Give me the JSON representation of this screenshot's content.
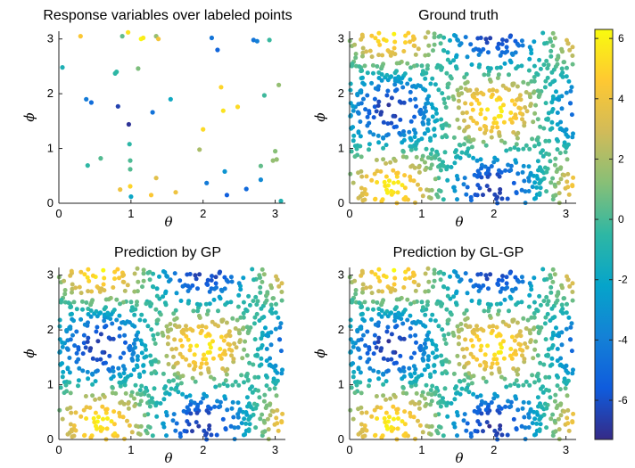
{
  "chart_data": [
    {
      "type": "scatter",
      "title": "Response variables over labeled points",
      "xlabel": "θ",
      "ylabel": "ϕ",
      "xlim": [
        0,
        3.14159
      ],
      "ylim": [
        0,
        3.14159
      ],
      "xticks": [
        "0",
        "1",
        "2",
        "3"
      ],
      "yticks": [
        "0",
        "1",
        "2",
        "3"
      ],
      "points": [
        [
          0.05,
          2.48,
          -1.2
        ],
        [
          0.3,
          3.05,
          4.5
        ],
        [
          0.38,
          1.9,
          -4.2
        ],
        [
          0.45,
          1.84,
          -4.8
        ],
        [
          0.4,
          0.69,
          -0.5
        ],
        [
          0.58,
          0.82,
          0.2
        ],
        [
          0.78,
          2.37,
          -0.6
        ],
        [
          0.8,
          2.4,
          -0.5
        ],
        [
          0.82,
          1.77,
          -6.5
        ],
        [
          0.85,
          0.25,
          4.0
        ],
        [
          0.88,
          3.05,
          0.5
        ],
        [
          0.96,
          3.12,
          5.5
        ],
        [
          0.97,
          1.44,
          -7.0
        ],
        [
          0.98,
          1.08,
          -0.6
        ],
        [
          0.99,
          0.78,
          0.1
        ],
        [
          0.99,
          0.62,
          0.2
        ],
        [
          0.99,
          0.31,
          5.0
        ],
        [
          1.0,
          0.12,
          -2.0
        ],
        [
          1.1,
          2.46,
          1.0
        ],
        [
          1.14,
          3.0,
          6.2
        ],
        [
          1.17,
          3.02,
          5.8
        ],
        [
          1.28,
          0.15,
          4.5
        ],
        [
          1.3,
          1.66,
          -4.6
        ],
        [
          1.35,
          0.46,
          3.5
        ],
        [
          1.35,
          3.05,
          1.6
        ],
        [
          1.38,
          3.0,
          4.2
        ],
        [
          1.55,
          1.9,
          -1.8
        ],
        [
          1.62,
          0.2,
          4.0
        ],
        [
          1.95,
          0.98,
          2.0
        ],
        [
          2.0,
          1.35,
          5.2
        ],
        [
          2.05,
          0.37,
          -4.2
        ],
        [
          2.12,
          3.02,
          -4.5
        ],
        [
          2.2,
          2.8,
          -5.2
        ],
        [
          2.25,
          2.12,
          5.0
        ],
        [
          2.28,
          1.69,
          5.5
        ],
        [
          2.33,
          0.15,
          -5.5
        ],
        [
          2.3,
          0.58,
          -3.0
        ],
        [
          2.48,
          1.76,
          5.2
        ],
        [
          2.6,
          0.26,
          -5.0
        ],
        [
          2.7,
          2.98,
          -4.5
        ],
        [
          2.75,
          2.96,
          -4.0
        ],
        [
          2.8,
          0.68,
          0.5
        ],
        [
          2.8,
          0.43,
          -3.5
        ],
        [
          2.85,
          1.97,
          -0.2
        ],
        [
          2.92,
          2.98,
          -0.3
        ],
        [
          2.97,
          0.78,
          1.5
        ],
        [
          3.0,
          0.95,
          1.2
        ],
        [
          3.02,
          0.8,
          1.5
        ],
        [
          3.05,
          2.16,
          1.5
        ],
        [
          3.08,
          0.04,
          -1.0
        ]
      ]
    },
    {
      "type": "scatter",
      "title": "Ground truth",
      "xlabel": "θ",
      "ylabel": "ϕ",
      "xlim": [
        0,
        3.14159
      ],
      "ylim": [
        0,
        3.14159
      ],
      "xticks": [
        "0",
        "1",
        "2",
        "3"
      ],
      "yticks": [
        "0",
        "1",
        "2",
        "3"
      ]
    },
    {
      "type": "scatter",
      "title": "Prediction by GP",
      "xlabel": "θ",
      "ylabel": "ϕ",
      "xlim": [
        0,
        3.14159
      ],
      "ylim": [
        0,
        3.14159
      ],
      "xticks": [
        "0",
        "1",
        "2",
        "3"
      ],
      "yticks": [
        "0",
        "1",
        "2",
        "3"
      ]
    },
    {
      "type": "scatter",
      "title": "Prediction by GL-GP",
      "xlabel": "θ",
      "ylabel": "ϕ",
      "xlim": [
        0,
        3.14159
      ],
      "ylim": [
        0,
        3.14159
      ],
      "xticks": [
        "0",
        "1",
        "2",
        "3"
      ],
      "yticks": [
        "0",
        "1",
        "2",
        "3"
      ]
    }
  ],
  "colorbar": {
    "colormap": "parula",
    "range": [
      -7.3,
      6.3
    ],
    "ticks": [
      "6",
      "4",
      "2",
      "0",
      "-2",
      "-4",
      "-6"
    ],
    "tick_values": [
      6,
      4,
      2,
      0,
      -2,
      -4,
      -6
    ],
    "colors": [
      "#352a87",
      "#0f5cdd",
      "#1481d6",
      "#06a4ca",
      "#2eb7a4",
      "#87bf77",
      "#d1bb59",
      "#fec832",
      "#f9fb0e"
    ]
  }
}
